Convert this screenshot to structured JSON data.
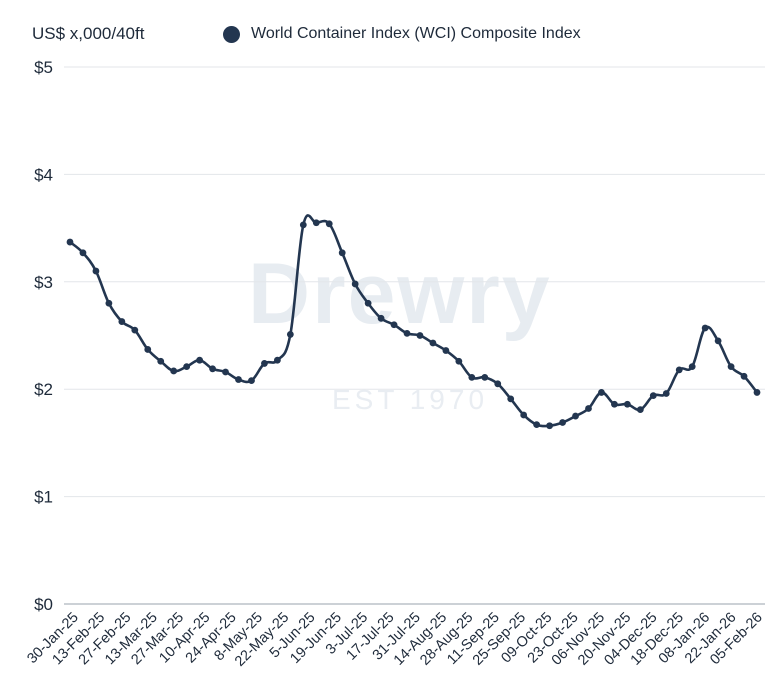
{
  "chart_data": {
    "type": "line",
    "ylabel": "US$ x,000/40ft",
    "legend": [
      "World Container Index (WCI) Composite Index"
    ],
    "watermark": {
      "name": "Drewry",
      "tagline": "EST 1970"
    },
    "yticks": [
      "$0",
      "$1",
      "$2",
      "$3",
      "$4",
      "$5"
    ],
    "ylim": [
      0,
      5
    ],
    "xtick_labels": [
      "30-Jan-25",
      "13-Feb-25",
      "27-Feb-25",
      "13-Mar-25",
      "27-Mar-25",
      "10-Apr-25",
      "24-Apr-25",
      "8-May-25",
      "22-May-25",
      "5-Jun-25",
      "19-Jun-25",
      "3-Jul-25",
      "17-Jul-25",
      "31-Jul-25",
      "14-Aug-25",
      "28-Aug-25",
      "11-Sep-25",
      "25-Sep-25",
      "09-Oct-25",
      "23-Oct-25",
      "06-Nov-25",
      "20-Nov-25",
      "04-Dec-25",
      "18-Dec-25",
      "08-Jan-26",
      "22-Jan-26",
      "05-Feb-26"
    ],
    "series": [
      {
        "name": "World Container Index (WCI) Composite Index",
        "color": "#233650",
        "values": [
          3.37,
          3.27,
          3.1,
          2.8,
          2.63,
          2.55,
          2.37,
          2.26,
          2.17,
          2.21,
          2.27,
          2.19,
          2.16,
          2.09,
          2.08,
          2.24,
          2.27,
          2.51,
          3.53,
          3.55,
          3.54,
          3.27,
          2.98,
          2.8,
          2.66,
          2.6,
          2.52,
          2.5,
          2.43,
          2.36,
          2.26,
          2.11,
          2.11,
          2.05,
          1.91,
          1.76,
          1.67,
          1.66,
          1.69,
          1.75,
          1.82,
          1.97,
          1.86,
          1.86,
          1.81,
          1.94,
          1.96,
          2.18,
          2.21,
          2.57,
          2.45,
          2.21,
          2.12,
          1.97
        ]
      }
    ]
  }
}
